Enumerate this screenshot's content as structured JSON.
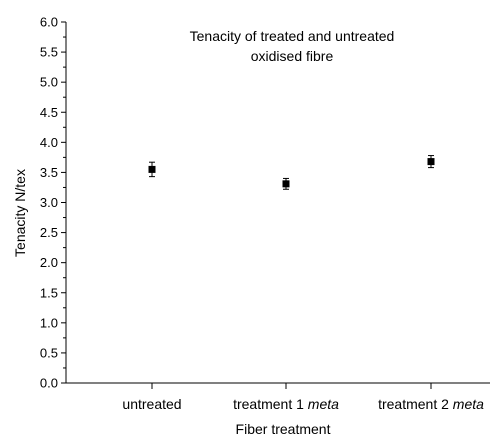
{
  "chart_data": {
    "type": "scatter",
    "title_lines": [
      "Tenacity of treated and untreated",
      "oxidised fibre"
    ],
    "xlabel": "Fiber treatment",
    "ylabel": "Tenacity N/tex",
    "ylim": [
      0,
      6
    ],
    "yticks": [
      "0.0",
      "0.5",
      "1.0",
      "1.5",
      "2.0",
      "2.5",
      "3.0",
      "3.5",
      "4.0",
      "4.5",
      "5.0",
      "5.5",
      "6.0"
    ],
    "categories": [
      {
        "main": "untreated",
        "suffix": ""
      },
      {
        "main": "treatment 1 ",
        "suffix": "meta"
      },
      {
        "main": "treatment 2 ",
        "suffix": "meta"
      }
    ],
    "values": [
      3.55,
      3.31,
      3.68
    ],
    "error": [
      0.12,
      0.09,
      0.1
    ],
    "grid": false,
    "marker": "square",
    "color": "#000000"
  }
}
